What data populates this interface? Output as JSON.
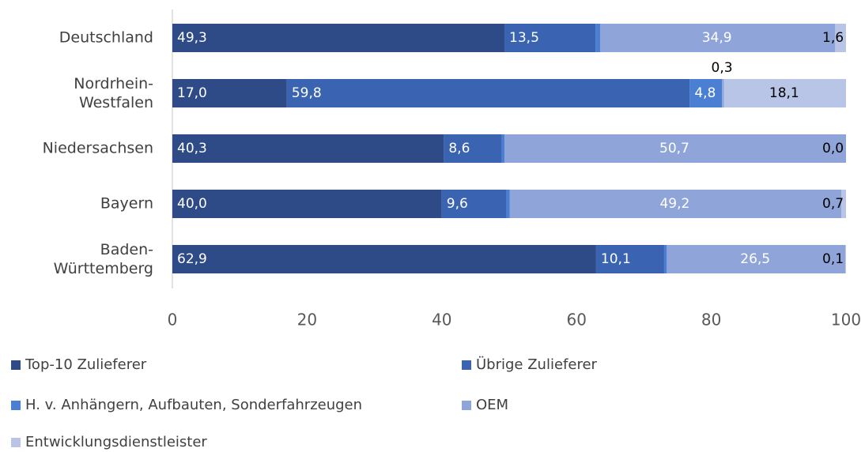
{
  "chart_data": {
    "type": "stacked-bar-horizontal",
    "categories": [
      "Deutschland",
      "Nordrhein-Westfalen",
      "Niedersachsen",
      "Bayern",
      "Baden-Württemberg"
    ],
    "series": [
      {
        "name": "Top-10 Zulieferer",
        "color": "#2e4b87",
        "values": [
          49.3,
          17.0,
          40.3,
          40.0,
          62.9
        ],
        "value_labels": [
          "49,3",
          "17,0",
          "40,3",
          "40,0",
          "62,9"
        ]
      },
      {
        "name": "Übrige Zulieferer",
        "color": "#3a63b2",
        "values": [
          13.5,
          59.8,
          8.6,
          9.6,
          10.1
        ],
        "value_labels": [
          "13,5",
          "59,8",
          "8,6",
          "9,6",
          "10,1"
        ]
      },
      {
        "name": "H. v. Anhängern, Aufbauten, Sonderfahrzeugen",
        "color": "#4b7fd3",
        "values": [
          0.7,
          4.8,
          0.4,
          0.5,
          0.4
        ],
        "value_labels": [
          "0,7",
          "4,8",
          "0,4",
          "0,5",
          "0,4"
        ]
      },
      {
        "name": "OEM",
        "color": "#8fa4d8",
        "values": [
          34.9,
          0.3,
          50.7,
          49.2,
          26.5
        ],
        "value_labels": [
          "34,9",
          "0,3",
          "50,7",
          "49,2",
          "26,5"
        ]
      },
      {
        "name": "Entwicklungsdienstleister",
        "color": "#b9c5e7",
        "values": [
          1.6,
          18.1,
          0.0,
          0.7,
          0.1
        ],
        "value_labels": [
          "1,6",
          "18,1",
          "0,0",
          "0,7",
          "0,1"
        ]
      }
    ],
    "xlim": [
      0,
      100
    ],
    "xticks": [
      0,
      20,
      40,
      60,
      80,
      100
    ]
  }
}
